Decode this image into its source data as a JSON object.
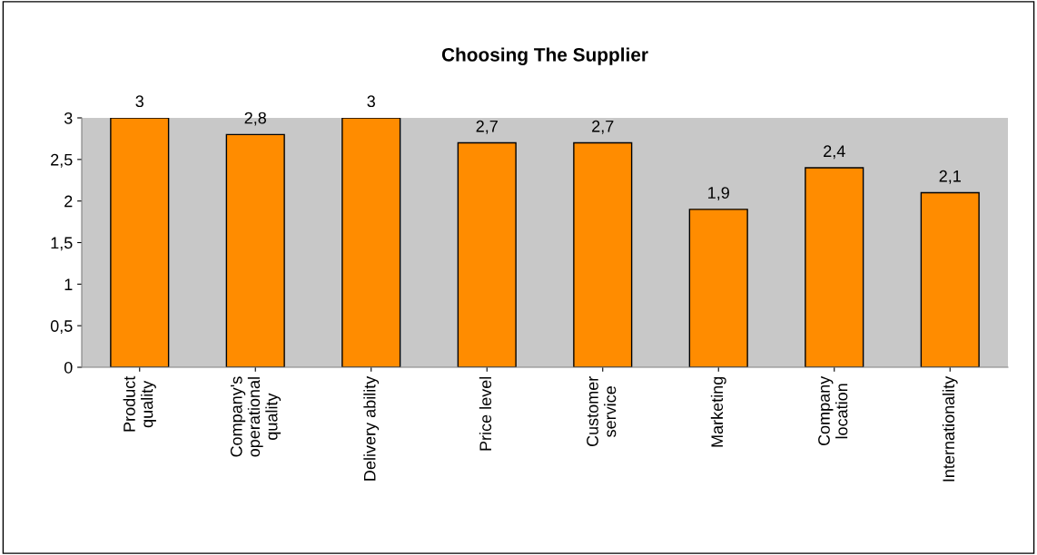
{
  "chart_data": {
    "type": "bar",
    "title": "Choosing The Supplier",
    "categories": [
      "Product\nquality",
      "Company's\noperational\nquality",
      "Delivery ability",
      "Price level",
      "Customer\nservice",
      "Marketing",
      "Company\nlocation",
      "Internationality"
    ],
    "values": [
      3,
      2.8,
      3,
      2.7,
      2.7,
      1.9,
      2.4,
      2.1
    ],
    "value_labels": [
      "3",
      "2,8",
      "3",
      "2,7",
      "2,7",
      "1,9",
      "2,4",
      "2,1"
    ],
    "color": "#ff8c00",
    "ylim": [
      0,
      3
    ],
    "yticks": [
      0,
      {
        "value": 0.5,
        "label": "0,5"
      },
      1,
      {
        "value": 1.5,
        "label": "1,5"
      },
      2,
      {
        "value": 2.5,
        "label": "2,5"
      },
      3
    ],
    "grid": false
  }
}
